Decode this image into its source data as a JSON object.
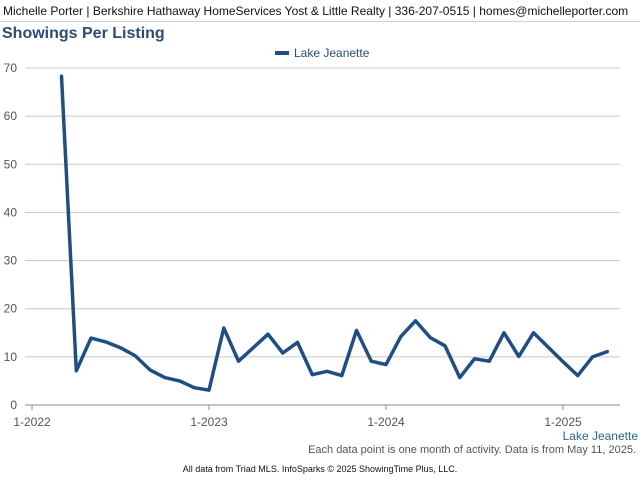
{
  "header": {
    "text": "Michelle Porter | Berkshire Hathaway HomeServices Yost & Little Realty | 336-207-0515 | homes@michelleporter.com"
  },
  "chart_data": {
    "type": "line",
    "title": "Showings Per Listing",
    "xlabel": "",
    "ylabel": "",
    "ylim": [
      0,
      70
    ],
    "yticks": [
      0,
      10,
      20,
      30,
      40,
      50,
      60,
      70
    ],
    "grid": true,
    "legend_position": "top-center",
    "xticks": [
      "1-2022",
      "1-2023",
      "1-2024",
      "1-2025"
    ],
    "x_start": "2022-01",
    "series": [
      {
        "name": "Lake Jeanette",
        "color": "#1f4e86",
        "x": [
          "2022-03",
          "2022-04",
          "2022-05",
          "2022-06",
          "2022-07",
          "2022-08",
          "2022-09",
          "2022-10",
          "2022-11",
          "2022-12",
          "2023-01",
          "2023-02",
          "2023-03",
          "2023-04",
          "2023-05",
          "2023-06",
          "2023-07",
          "2023-08",
          "2023-09",
          "2023-10",
          "2023-11",
          "2023-12",
          "2024-01",
          "2024-02",
          "2024-03",
          "2024-04",
          "2024-05",
          "2024-06",
          "2024-07",
          "2024-08",
          "2024-09",
          "2024-10",
          "2024-11",
          "2024-12",
          "2025-01",
          "2025-02",
          "2025-03",
          "2025-04"
        ],
        "values": [
          68.3,
          7.1,
          13.9,
          13.1,
          11.9,
          10.2,
          7.3,
          5.7,
          5.0,
          3.6,
          3.1,
          16.0,
          9.1,
          11.9,
          14.7,
          10.8,
          13.0,
          6.3,
          7.0,
          6.1,
          15.5,
          9.1,
          8.4,
          14.2,
          17.5,
          14.0,
          12.3,
          5.7,
          9.6,
          9.1,
          15.0,
          10.1,
          15.0,
          12.0,
          9.0,
          6.1,
          10.0,
          11.1
        ]
      }
    ],
    "corner_label": "Lake Jeanette"
  },
  "footer": {
    "note": "Each data point is one month of activity. Data is from May 11, 2025.",
    "credit": "All data from Triad MLS. InfoSparks © 2025 ShowingTime Plus, LLC."
  }
}
